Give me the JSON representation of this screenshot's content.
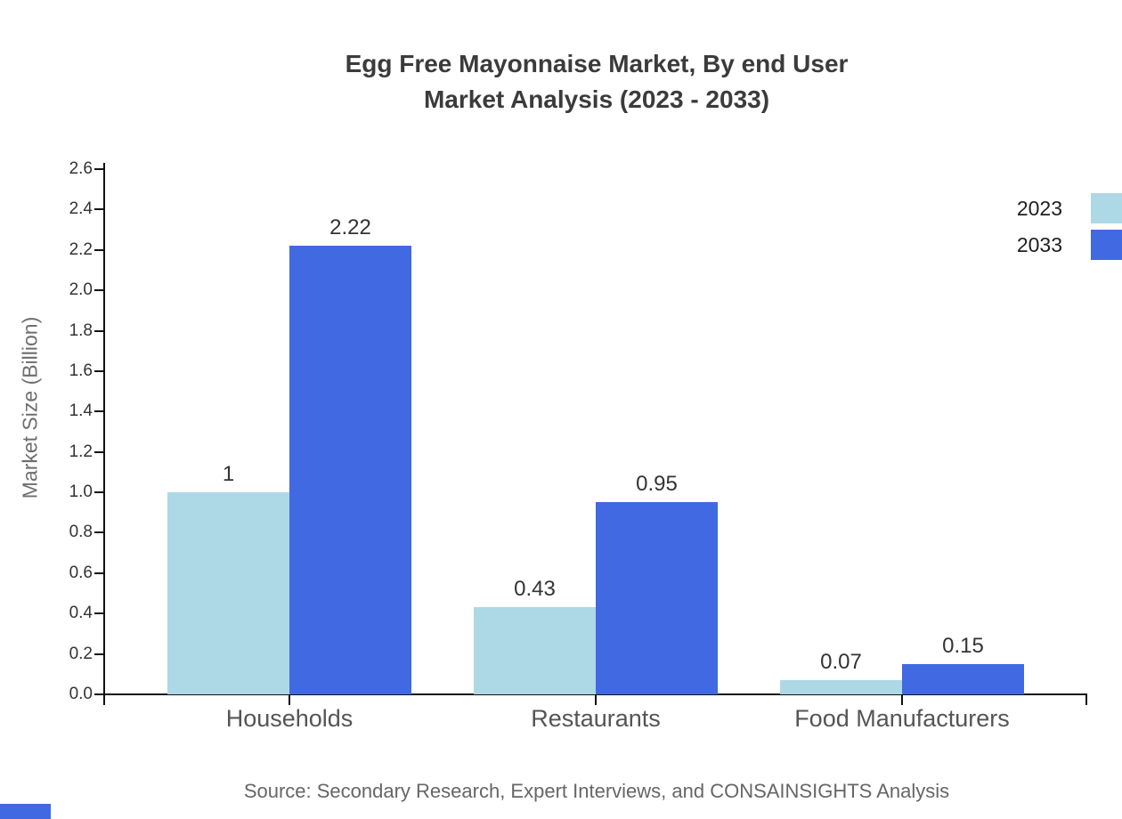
{
  "page": {
    "background": "#ffffff"
  },
  "chart_data": {
    "type": "bar",
    "title": "Egg Free Mayonnaise Market, By end User Market Analysis (2023 - 2033)",
    "title_lines": [
      "Egg Free Mayonnaise Market, By end User",
      "Market Analysis (2023 - 2033)"
    ],
    "categories": [
      "Households",
      "Restaurants",
      "Food Manufacturers"
    ],
    "series": [
      {
        "name": "2023",
        "color": "#ADD8E6",
        "values": [
          1,
          0.43,
          0.07
        ],
        "labels": [
          "1",
          "0.43",
          "0.07"
        ]
      },
      {
        "name": "2033",
        "color": "#4169E1",
        "values": [
          2.22,
          0.95,
          0.15
        ],
        "labels": [
          "2.22",
          "0.95",
          "0.15"
        ]
      }
    ],
    "xlabel": "",
    "ylabel": "Market Size (Billion)",
    "ylim": [
      0,
      2.6
    ],
    "ytick_step": 0.2,
    "yticks": [
      "0.0",
      "0.2",
      "0.4",
      "0.6",
      "0.8",
      "1.0",
      "1.2",
      "1.4",
      "1.6",
      "1.8",
      "2.0",
      "2.2",
      "2.4",
      "2.6"
    ],
    "grid": false,
    "legend_position": "top-right",
    "bars_per_group": 2
  },
  "footer": {
    "source": "Source: Secondary Research, Expert Interviews, and CONSAINSIGHTS Analysis"
  },
  "decor": {
    "bottom_left_fragment_color": "#4169E1"
  },
  "colors": {
    "axis": "#111111",
    "title_text": "#3b3b3b",
    "tick_text": "#333333",
    "category_text": "#555555",
    "value_label_text": "#333333",
    "axis_title_text": "#6e6e6e",
    "source_text": "#666666",
    "legend_text": "#1f1f1f",
    "series_2023": "#ADD8E6",
    "series_2033": "#4169E1"
  }
}
